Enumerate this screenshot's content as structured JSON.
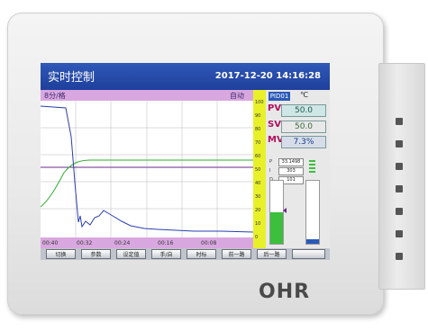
{
  "device": {
    "brand": "OHR"
  },
  "screen": {
    "title": "实时控制",
    "datetime": "2017-12-20 14:16:28",
    "chart": {
      "rate": "8分/格",
      "mode": "自动",
      "time_labels": [
        "00:40",
        "00:32",
        "00:24",
        "00:16",
        "00:08"
      ]
    },
    "gauge_scale": [
      "100",
      "90",
      "80",
      "70",
      "60",
      "50",
      "40",
      "30",
      "20",
      "10",
      "0"
    ],
    "panel": {
      "loop_label": "PID01",
      "unit": "℃",
      "pv_label": "PV",
      "pv_value": "50.0",
      "sv_label": "SV",
      "sv_value": "50.0",
      "mv_label": "MV",
      "mv_value": "7.3%",
      "p_label": "P",
      "p_value": "33.1498",
      "i_label": "I",
      "i_value": "303",
      "d_label": "D",
      "d_value": "101"
    },
    "buttons": [
      "切换",
      "参数",
      "设定值",
      "手/自",
      "时标",
      "前一路",
      "后一路",
      ""
    ]
  }
}
